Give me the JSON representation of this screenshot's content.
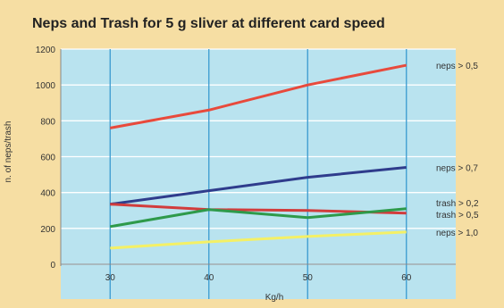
{
  "chart_data": {
    "type": "line",
    "title": "Neps and Trash for 5 g  sliver at different card speed",
    "xlabel": "Kg/h",
    "ylabel": "n. of neps/trash",
    "x": [
      30,
      40,
      50,
      60
    ],
    "xlim": [
      25,
      65
    ],
    "ylim": [
      0,
      1200
    ],
    "xticks": [
      "30",
      "40",
      "50",
      "60"
    ],
    "yticks": [
      "0",
      "200",
      "400",
      "600",
      "800",
      "1000",
      "1200"
    ],
    "grid": true,
    "series": [
      {
        "name": "neps > 0,5",
        "color": "#e84a3c",
        "values": [
          760,
          860,
          1000,
          1110
        ]
      },
      {
        "name": "neps > 0,7",
        "color": "#2f3c8c",
        "values": [
          335,
          410,
          485,
          540
        ]
      },
      {
        "name": "trash > 0,2",
        "color": "#d23c3c",
        "values": [
          335,
          305,
          300,
          285
        ]
      },
      {
        "name": "trash > 0,5",
        "color": "#2e9a4a",
        "values": [
          210,
          305,
          260,
          310
        ]
      },
      {
        "name": "neps > 1,0",
        "color": "#f4f066",
        "values": [
          90,
          125,
          155,
          180
        ]
      }
    ]
  }
}
